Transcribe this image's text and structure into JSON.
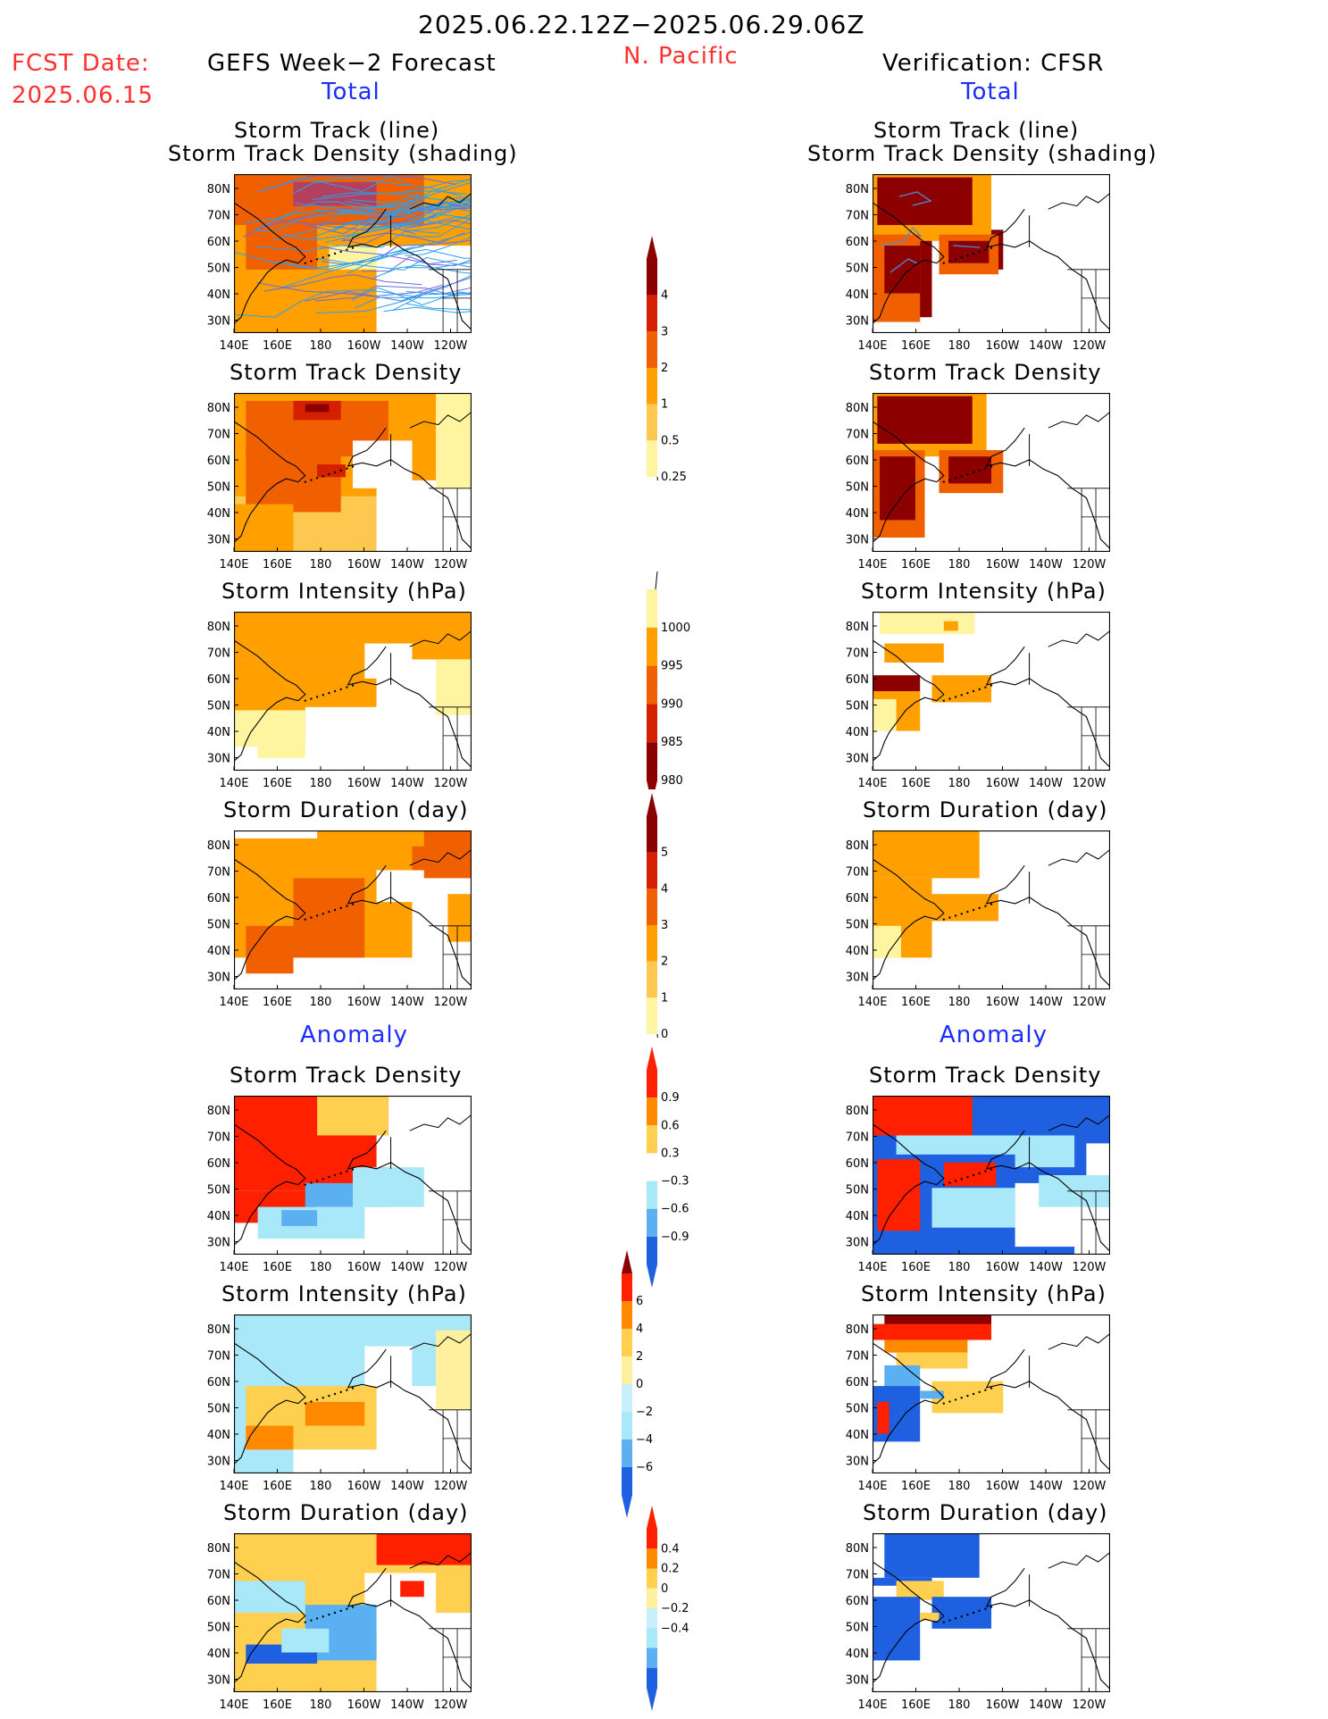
{
  "header": {
    "date_range": "2025.06.22.12Z−2025.06.29.06Z",
    "fcst_date_label": "FCST Date:",
    "fcst_date_value": "2025.06.15",
    "region": "N. Pacific",
    "left_title": "GEFS Week−2 Forecast",
    "right_title": "Verification: CFSR",
    "total_label": "Total",
    "anomaly_label": "Anomaly"
  },
  "axes": {
    "lat_ticks": [
      "80N",
      "70N",
      "60N",
      "50N",
      "40N",
      "30N"
    ],
    "lon_ticks": [
      "140E",
      "160E",
      "180",
      "160W",
      "140W",
      "120W"
    ]
  },
  "panel_titles": {
    "track_line": "Storm Track (line)",
    "track_density_shading": "Storm Track Density (shading)",
    "track_density": "Storm Track Density",
    "intensity": "Storm Intensity (hPa)",
    "duration": "Storm Duration (day)"
  },
  "colorbars": {
    "density": {
      "labels": [
        "4",
        "3",
        "2",
        "1",
        "0.5",
        "0.25"
      ],
      "colors": [
        "#8c0000",
        "#d42000",
        "#f06000",
        "#ffa000",
        "#fcc850",
        "#fff5a0"
      ]
    },
    "intensity": {
      "labels": [
        "1000",
        "995",
        "990",
        "985",
        "980"
      ],
      "colors": [
        "#fff5a0",
        "#ffa000",
        "#f06000",
        "#d42000",
        "#8c0000"
      ]
    },
    "duration": {
      "labels": [
        "5",
        "4",
        "3",
        "2",
        "1",
        "0"
      ],
      "colors": [
        "#8c0000",
        "#d42000",
        "#f06000",
        "#ffa000",
        "#fcc850",
        "#fff5a0"
      ]
    },
    "anom_density": {
      "labels": [
        "0.9",
        "0.6",
        "0.3",
        "−0.3",
        "−0.6",
        "−0.9"
      ],
      "colors": [
        "#ff2000",
        "#ff8a00",
        "#ffd050",
        "#ffffff",
        "#a8e8f8",
        "#5ab0f0",
        "#1e60e0"
      ]
    },
    "anom_intensity": {
      "labels": [
        "6",
        "4",
        "2",
        "0",
        "−2",
        "−4",
        "−6"
      ],
      "colors": [
        "#ff2000",
        "#ff8a00",
        "#ffd050",
        "#fff0a0",
        "#c8f0fa",
        "#a8e8f8",
        "#5ab0f0",
        "#1e60e0"
      ]
    },
    "anom_duration": {
      "labels": [
        "0.4",
        "0.2",
        "0",
        "−0.2",
        "−0.4"
      ],
      "colors": [
        "#ff2000",
        "#ff8a00",
        "#ffd050",
        "#fff0a0",
        "#c8f0fa",
        "#a8e8f8",
        "#5ab0f0",
        "#1e60e0"
      ]
    }
  }
}
